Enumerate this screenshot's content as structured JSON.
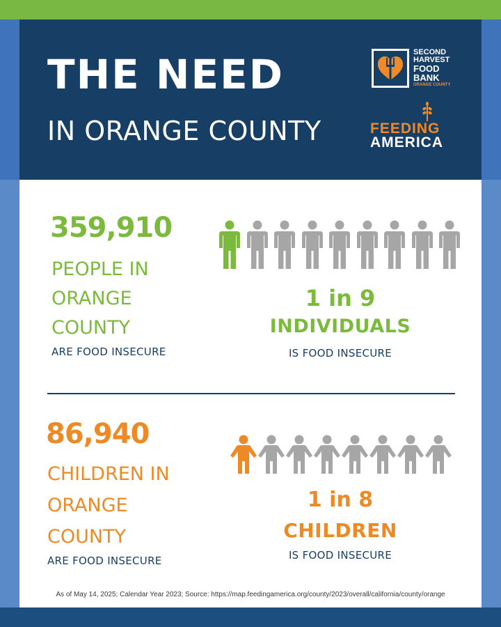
{
  "header": {
    "title": "THE NEED",
    "subtitle": "IN ORANGE COUNTY",
    "logo_shf": {
      "line1": "SECOND",
      "line2": "HARVEST",
      "line3": "FOOD",
      "line4": "BANK",
      "line5": "ORANGE COUNTY"
    },
    "logo_fa": {
      "line1": "FEEDING",
      "line2": "AMERICA"
    }
  },
  "people": {
    "count": "359,910",
    "label_line1": "PEOPLE IN",
    "label_line2": "ORANGE",
    "label_line3": "COUNTY",
    "label_small": "ARE FOOD INSECURE",
    "ratio": "1 in 9",
    "ratio_word": "INDIVIDUALS",
    "ratio_small": "IS FOOD INSECURE",
    "highlighted": 1,
    "total_icons": 9
  },
  "children": {
    "count": "86,940",
    "label_line1": "CHILDREN IN",
    "label_line2": "ORANGE",
    "label_line3": "COUNTY",
    "label_small": "ARE FOOD INSECURE",
    "ratio": "1 in 8",
    "ratio_word": "CHILDREN",
    "ratio_small": "IS FOOD INSECURE",
    "highlighted": 1,
    "total_icons": 8
  },
  "footnote": "As of May 14, 2025; Calendar Year 2023; Source: https://map.feedingamerica.org/county/2023/overall/california/county/orange",
  "colors": {
    "green": "#7cba3d",
    "orange": "#ee8a26",
    "gray": "#a6a6a6",
    "navy": "#173e64"
  }
}
